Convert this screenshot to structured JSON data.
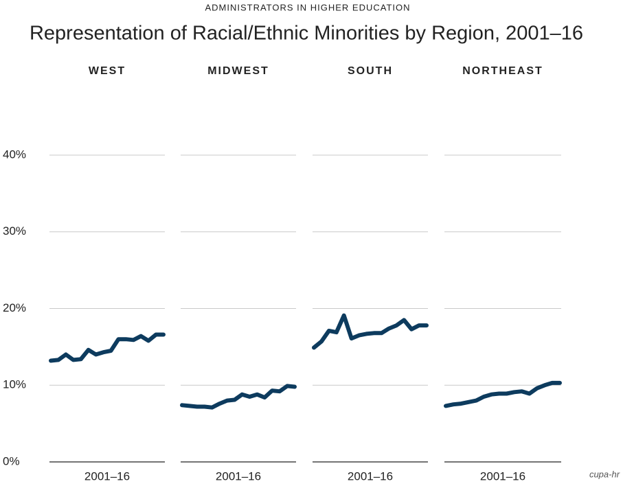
{
  "chart_data": {
    "type": "line",
    "subtitle": "ADMINISTRATORS IN HIGHER EDUCATION",
    "title": "Representation of Racial/Ethnic Minorities by Region, 2001–16",
    "xlabel": "2001–16",
    "ylim": [
      0,
      40
    ],
    "yticks": [
      {
        "value": 0,
        "label": "0%"
      },
      {
        "value": 10,
        "label": "10%"
      },
      {
        "value": 20,
        "label": "20%"
      },
      {
        "value": 30,
        "label": "30%"
      },
      {
        "value": 40,
        "label": "40%"
      }
    ],
    "grid": true,
    "series": [
      {
        "name": "WEST",
        "color": "#0d3b5e",
        "values": [
          13.2,
          13.3,
          14.0,
          13.3,
          13.4,
          14.6,
          14.0,
          14.3,
          14.5,
          16.0,
          16.0,
          15.9,
          16.4,
          15.8,
          16.6,
          16.6
        ]
      },
      {
        "name": "MIDWEST",
        "color": "#0d3b5e",
        "values": [
          7.4,
          7.3,
          7.2,
          7.2,
          7.1,
          7.6,
          8.0,
          8.1,
          8.8,
          8.5,
          8.8,
          8.4,
          9.3,
          9.2,
          9.9,
          9.8
        ]
      },
      {
        "name": "SOUTH",
        "color": "#0d3b5e",
        "values": [
          14.9,
          15.7,
          17.1,
          16.9,
          19.1,
          16.1,
          16.5,
          16.7,
          16.8,
          16.8,
          17.4,
          17.8,
          18.5,
          17.3,
          17.8,
          17.8
        ]
      },
      {
        "name": "NORTHEAST",
        "color": "#0d3b5e",
        "values": [
          7.3,
          7.5,
          7.6,
          7.8,
          8.0,
          8.5,
          8.8,
          8.9,
          8.9,
          9.1,
          9.2,
          8.9,
          9.6,
          10.0,
          10.3,
          10.3
        ]
      }
    ]
  },
  "logo": "cupa-hr"
}
